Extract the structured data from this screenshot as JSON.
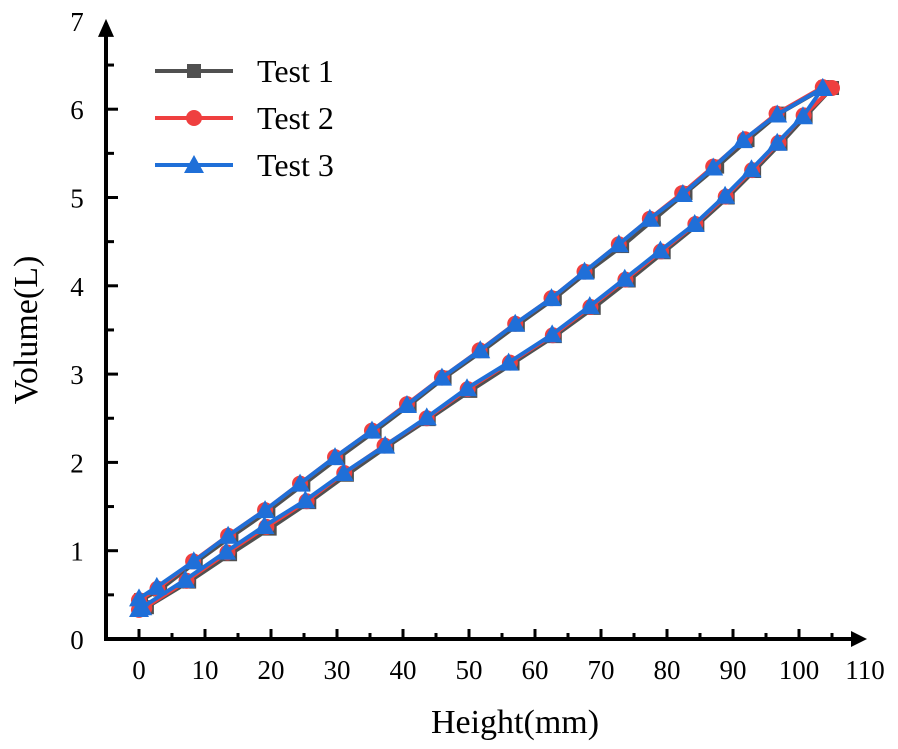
{
  "chart_data": {
    "type": "line",
    "title": "",
    "xlabel": "Height(mm)",
    "ylabel": "Volume(L)",
    "xlim": [
      -5,
      110
    ],
    "ylim": [
      0,
      7
    ],
    "xticks": [
      0,
      10,
      20,
      30,
      40,
      50,
      60,
      70,
      80,
      90,
      100,
      110
    ],
    "yticks": [
      0,
      1,
      2,
      3,
      4,
      5,
      6,
      7
    ],
    "grid": false,
    "legend_position": "top-left",
    "series": [
      {
        "name": "Test 1",
        "color": "#505050",
        "marker": "square",
        "x": [
          0.3,
          1.2,
          7.6,
          13.8,
          19.8,
          25.8,
          31.5,
          37.6,
          43.9,
          50.2,
          56.6,
          63.0,
          68.9,
          74.2,
          79.5,
          84.6,
          89.2,
          93.2,
          97.2,
          101.0,
          105.0,
          104.0,
          97.0,
          92.2,
          87.6,
          82.8,
          78.0,
          73.2,
          68.0,
          63.0,
          57.4,
          52.0,
          46.3,
          41.0,
          35.7,
          30.2,
          24.9,
          19.6,
          14.0,
          8.6,
          3.2,
          0.3
        ],
        "y": [
          0.34,
          0.36,
          0.65,
          0.96,
          1.25,
          1.55,
          1.86,
          2.18,
          2.49,
          2.81,
          3.12,
          3.43,
          3.75,
          4.06,
          4.38,
          4.69,
          5.0,
          5.3,
          5.61,
          5.92,
          6.24,
          6.25,
          5.95,
          5.65,
          5.35,
          5.05,
          4.75,
          4.45,
          4.16,
          3.86,
          3.56,
          3.26,
          2.96,
          2.65,
          2.35,
          2.05,
          1.75,
          1.45,
          1.16,
          0.87,
          0.56,
          0.44
        ]
      },
      {
        "name": "Test 2",
        "color": "#ef3f3f",
        "marker": "circle",
        "x": [
          0.0,
          0.8,
          7.2,
          13.4,
          19.3,
          25.4,
          31.1,
          37.2,
          43.6,
          49.8,
          56.2,
          62.7,
          68.4,
          73.7,
          79.1,
          84.3,
          88.9,
          92.9,
          96.9,
          100.7,
          105.0,
          103.6,
          96.6,
          91.8,
          87.0,
          82.3,
          77.4,
          72.7,
          67.5,
          62.5,
          57.0,
          51.6,
          45.9,
          40.6,
          35.3,
          29.7,
          24.4,
          19.1,
          13.5,
          8.2,
          2.8,
          0.0
        ],
        "y": [
          0.33,
          0.35,
          0.66,
          0.98,
          1.27,
          1.56,
          1.88,
          2.19,
          2.5,
          2.83,
          3.13,
          3.44,
          3.76,
          4.07,
          4.39,
          4.7,
          5.01,
          5.31,
          5.62,
          5.93,
          6.24,
          6.25,
          5.95,
          5.66,
          5.35,
          5.05,
          4.76,
          4.47,
          4.16,
          3.86,
          3.57,
          3.27,
          2.96,
          2.66,
          2.36,
          2.06,
          1.76,
          1.46,
          1.17,
          0.88,
          0.57,
          0.44
        ]
      },
      {
        "name": "Test 3",
        "color": "#1f6fd8",
        "marker": "triangle",
        "x": [
          0.0,
          0.5,
          7.0,
          13.2,
          19.0,
          25.2,
          31.0,
          37.3,
          43.6,
          49.7,
          56.0,
          62.6,
          68.3,
          73.6,
          79.0,
          84.2,
          88.8,
          92.8,
          96.7,
          100.6,
          103.6,
          103.6,
          96.7,
          91.5,
          87.0,
          82.4,
          77.4,
          72.7,
          67.5,
          62.5,
          57.0,
          51.7,
          45.9,
          40.6,
          35.3,
          29.7,
          24.4,
          19.1,
          13.5,
          8.3,
          2.7,
          0.0
        ],
        "y": [
          0.34,
          0.36,
          0.67,
          0.99,
          1.28,
          1.57,
          1.88,
          2.19,
          2.51,
          2.84,
          3.13,
          3.45,
          3.77,
          4.08,
          4.4,
          4.7,
          5.02,
          5.32,
          5.62,
          5.92,
          6.24,
          6.24,
          5.94,
          5.65,
          5.34,
          5.04,
          4.76,
          4.47,
          4.16,
          3.86,
          3.57,
          3.27,
          2.96,
          2.65,
          2.36,
          2.06,
          1.76,
          1.46,
          1.17,
          0.88,
          0.59,
          0.46
        ]
      }
    ]
  }
}
